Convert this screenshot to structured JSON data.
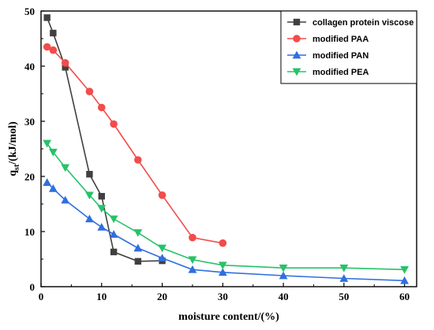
{
  "chart_data": {
    "type": "line",
    "xlabel": "moisture content/(%)",
    "ylabel_main": "q",
    "ylabel_sub": "st",
    "ylabel_rest": "/(kJ/mol)",
    "xlim": [
      0,
      62
    ],
    "ylim": [
      0,
      50
    ],
    "xticks": [
      0,
      10,
      20,
      30,
      40,
      50,
      60
    ],
    "yticks": [
      0,
      10,
      20,
      30,
      40,
      50
    ],
    "legend_position": "top-right",
    "grid": false,
    "series": [
      {
        "name": "collagen protein viscose",
        "color": "#404040",
        "marker": "square",
        "x": [
          1,
          2,
          4,
          8,
          10,
          12,
          16,
          20
        ],
        "y": [
          48.8,
          46.0,
          39.8,
          20.4,
          16.4,
          6.3,
          4.6,
          4.7
        ]
      },
      {
        "name": "modified PAA",
        "color": "#f24c4c",
        "marker": "circle",
        "x": [
          1,
          2,
          4,
          8,
          10,
          12,
          16,
          20,
          25,
          30
        ],
        "y": [
          43.5,
          42.9,
          40.6,
          35.4,
          32.5,
          29.5,
          23.0,
          16.6,
          8.9,
          7.9
        ]
      },
      {
        "name": "modified PAN",
        "color": "#2f6fe0",
        "marker": "triangle-up",
        "x": [
          1,
          2,
          4,
          8,
          10,
          12,
          16,
          20,
          25,
          30,
          40,
          50,
          60
        ],
        "y": [
          18.9,
          17.8,
          15.7,
          12.3,
          10.8,
          9.5,
          7.0,
          5.2,
          3.1,
          2.6,
          2.0,
          1.5,
          1.1
        ]
      },
      {
        "name": "modified PEA",
        "color": "#27c26a",
        "marker": "triangle-down",
        "x": [
          1,
          2,
          4,
          8,
          10,
          12,
          16,
          20,
          25,
          30,
          40,
          50,
          60
        ],
        "y": [
          26.0,
          24.4,
          21.6,
          16.6,
          14.2,
          12.3,
          9.8,
          7.0,
          4.9,
          3.9,
          3.4,
          3.4,
          3.1
        ]
      }
    ]
  }
}
